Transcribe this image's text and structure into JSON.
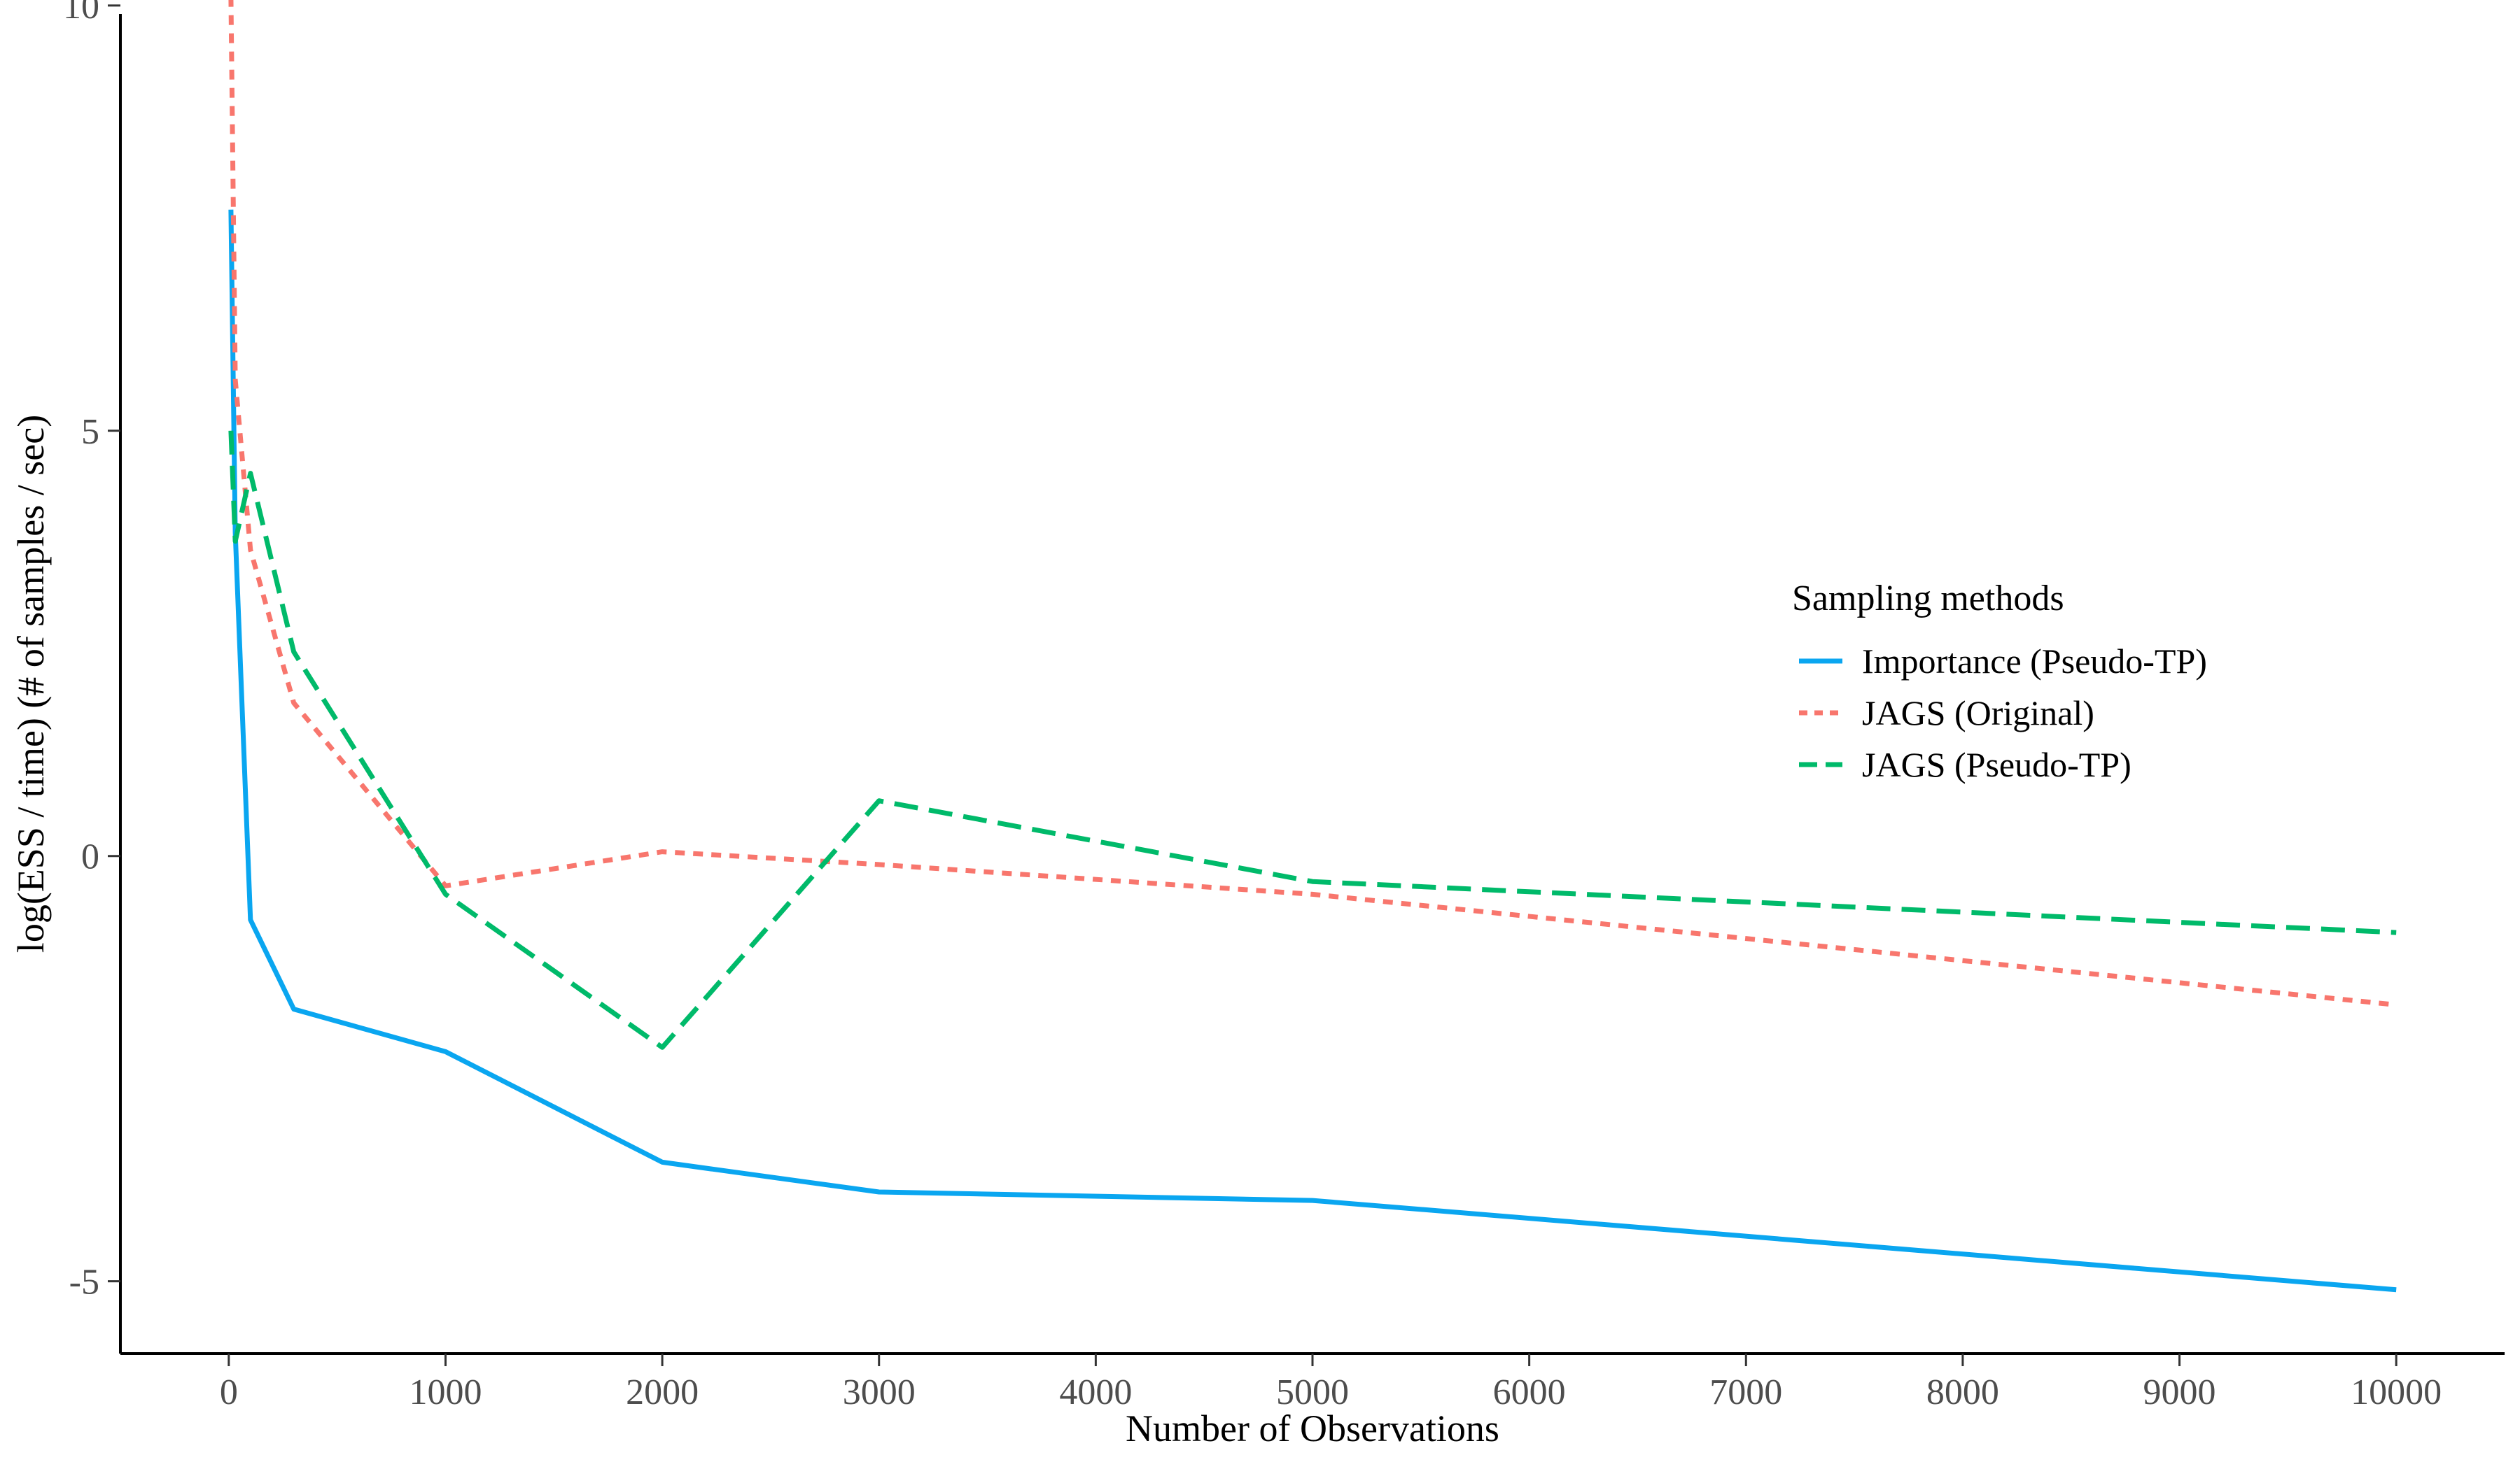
{
  "chart_data": {
    "type": "line",
    "title": "",
    "xlabel": "Number of Observations",
    "ylabel": "log(ESS / time) (# of samples / sec)",
    "xlim": [
      -500,
      10500
    ],
    "ylim": [
      -5.85,
      9.9
    ],
    "x_ticks": [
      0,
      1000,
      2000,
      3000,
      4000,
      5000,
      6000,
      7000,
      8000,
      9000,
      10000
    ],
    "x_tick_labels": [
      "0",
      "1000",
      "2000",
      "3000",
      "4000",
      "5000",
      "6000",
      "7000",
      "8000",
      "9000",
      "10000"
    ],
    "y_ticks": [
      -5,
      0,
      5,
      10
    ],
    "y_tick_labels": [
      "-5",
      "0",
      "5",
      "10"
    ],
    "grid": false,
    "legend": {
      "title": "Sampling methods",
      "position": "right"
    },
    "series": [
      {
        "name": "Importance (Pseudo-TP)",
        "color": "#0AA6F0",
        "dash": "solid",
        "x": [
          10,
          30,
          100,
          300,
          1000,
          2000,
          3000,
          5000,
          10000
        ],
        "y": [
          7.6,
          3.8,
          -0.75,
          -1.8,
          -2.3,
          -3.6,
          -3.95,
          -4.05,
          -5.1
        ]
      },
      {
        "name": "JAGS (Original)",
        "color": "#F8766D",
        "dash": "dotted",
        "x": [
          10,
          30,
          100,
          300,
          1000,
          2000,
          3000,
          5000,
          10000
        ],
        "y": [
          10.1,
          5.6,
          3.6,
          1.8,
          -0.35,
          0.05,
          -0.1,
          -0.45,
          -1.75
        ]
      },
      {
        "name": "JAGS (Pseudo-TP)",
        "color": "#00BA6A",
        "dash": "dashed",
        "x": [
          10,
          30,
          100,
          300,
          1000,
          2000,
          3000,
          5000,
          10000
        ],
        "y": [
          5.0,
          3.7,
          4.5,
          2.4,
          -0.45,
          -2.25,
          0.65,
          -0.3,
          -0.9
        ]
      }
    ]
  }
}
